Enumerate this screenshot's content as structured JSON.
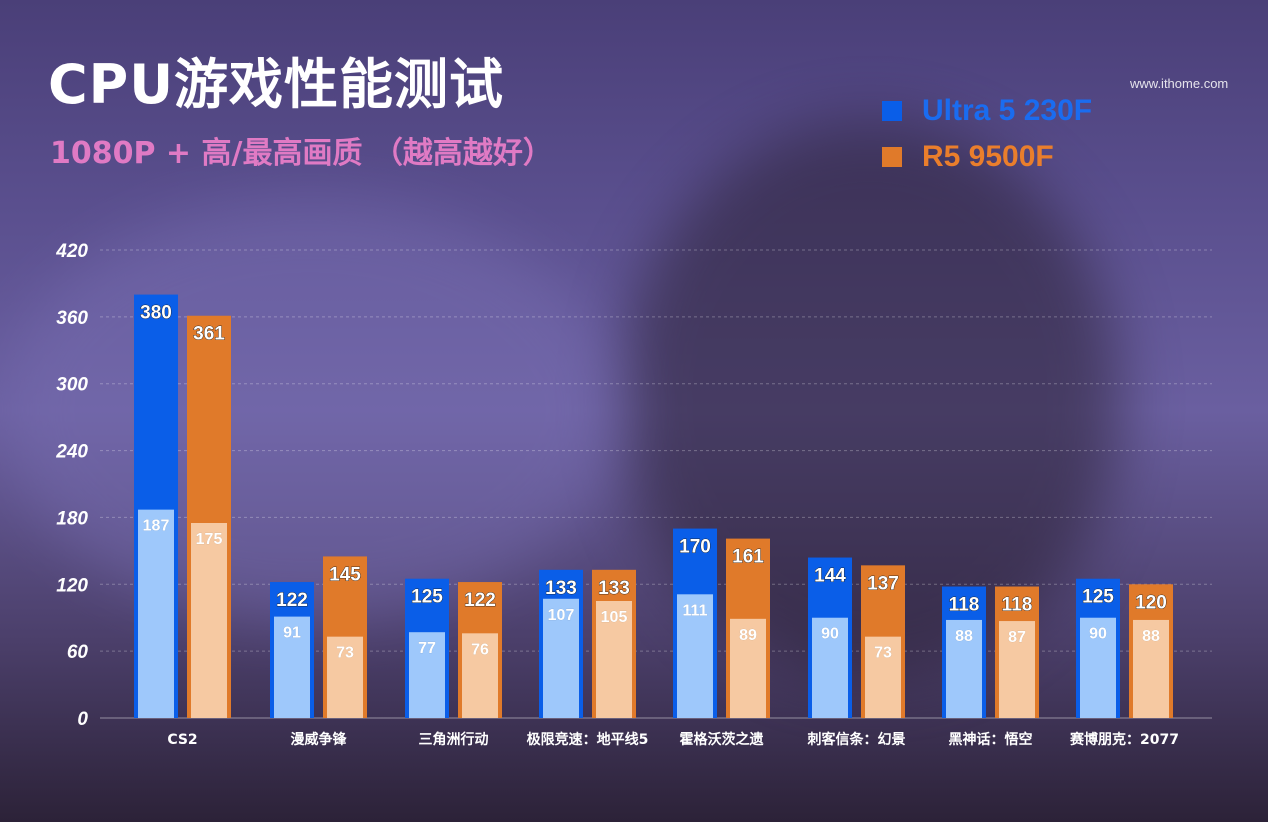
{
  "title": "CPU游戏性能测试",
  "subtitle": "1080P + 高/最高画质 （越高越好）",
  "watermark": "www.ithome.com",
  "colors": {
    "ultra_dark": "#0a5ee8",
    "ultra_light": "#9ec8fb",
    "r5_dark": "#e07a2a",
    "r5_light": "#f6c9a2"
  },
  "chart_data": {
    "type": "bar",
    "title": "CPU游戏性能测试",
    "subtitle": "1080P + 高/最高画质 （越高越好）",
    "categories": [
      "CS2",
      "漫威争锋",
      "三角洲行动",
      "极限竞速：地平线5",
      "霍格沃茨之遗",
      "刺客信条：幻景",
      "黑神话：悟空",
      "赛博朋克：2077"
    ],
    "ylim": [
      0,
      420
    ],
    "yticks": [
      0,
      60,
      120,
      180,
      240,
      300,
      360,
      420
    ],
    "grid": true,
    "legend_position": "top-right",
    "series": [
      {
        "name": "Ultra 5 230F",
        "avg": [
          380,
          122,
          125,
          133,
          170,
          144,
          118,
          125
        ],
        "low": [
          187,
          91,
          77,
          107,
          111,
          90,
          88,
          90
        ]
      },
      {
        "name": "R5 9500F",
        "avg": [
          361,
          145,
          122,
          133,
          161,
          137,
          118,
          120
        ],
        "low": [
          175,
          73,
          76,
          105,
          89,
          73,
          87,
          88
        ]
      }
    ]
  }
}
